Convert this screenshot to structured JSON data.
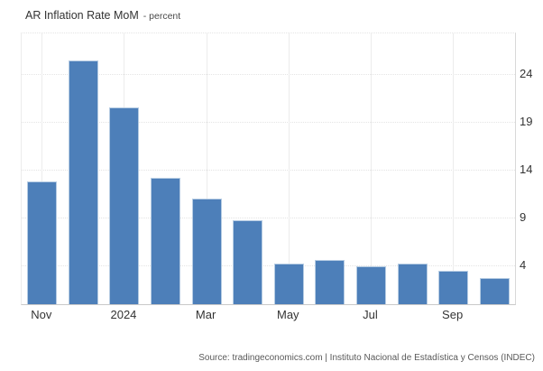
{
  "header": {
    "title": "AR Inflation Rate MoM",
    "subtitle": "- percent"
  },
  "source_line": "Source: tradingeconomics.com | Instituto Nacional de Estadística y Censos (INDEC)",
  "colors": {
    "bar": "#4d7fb9",
    "bar_border": "#b6cce3",
    "grid_dotted": "#e4e4e4",
    "grid_vertical": "#ececec",
    "axis_right": "#d8d8d8",
    "axis_bottom": "#c9c9c9",
    "text": "#333333",
    "muted": "#595959"
  },
  "chart_data": {
    "type": "bar",
    "title": "AR Inflation Rate MoM",
    "ylabel": "percent",
    "xlabel": "",
    "categories": [
      "Nov",
      "",
      "2024",
      "",
      "Mar",
      "",
      "May",
      "",
      "Jul",
      "",
      "Sep",
      ""
    ],
    "values": [
      12.8,
      25.5,
      20.6,
      13.2,
      11.0,
      8.8,
      4.2,
      4.6,
      4.0,
      4.2,
      3.5,
      2.7
    ],
    "yticks": [
      4,
      9,
      14,
      19,
      24
    ],
    "ylim": [
      0,
      28.3
    ],
    "y_axis_side": "right",
    "grid": "dotted-horizontal, faint-vertical-at-labeled-ticks",
    "legend": "none"
  }
}
